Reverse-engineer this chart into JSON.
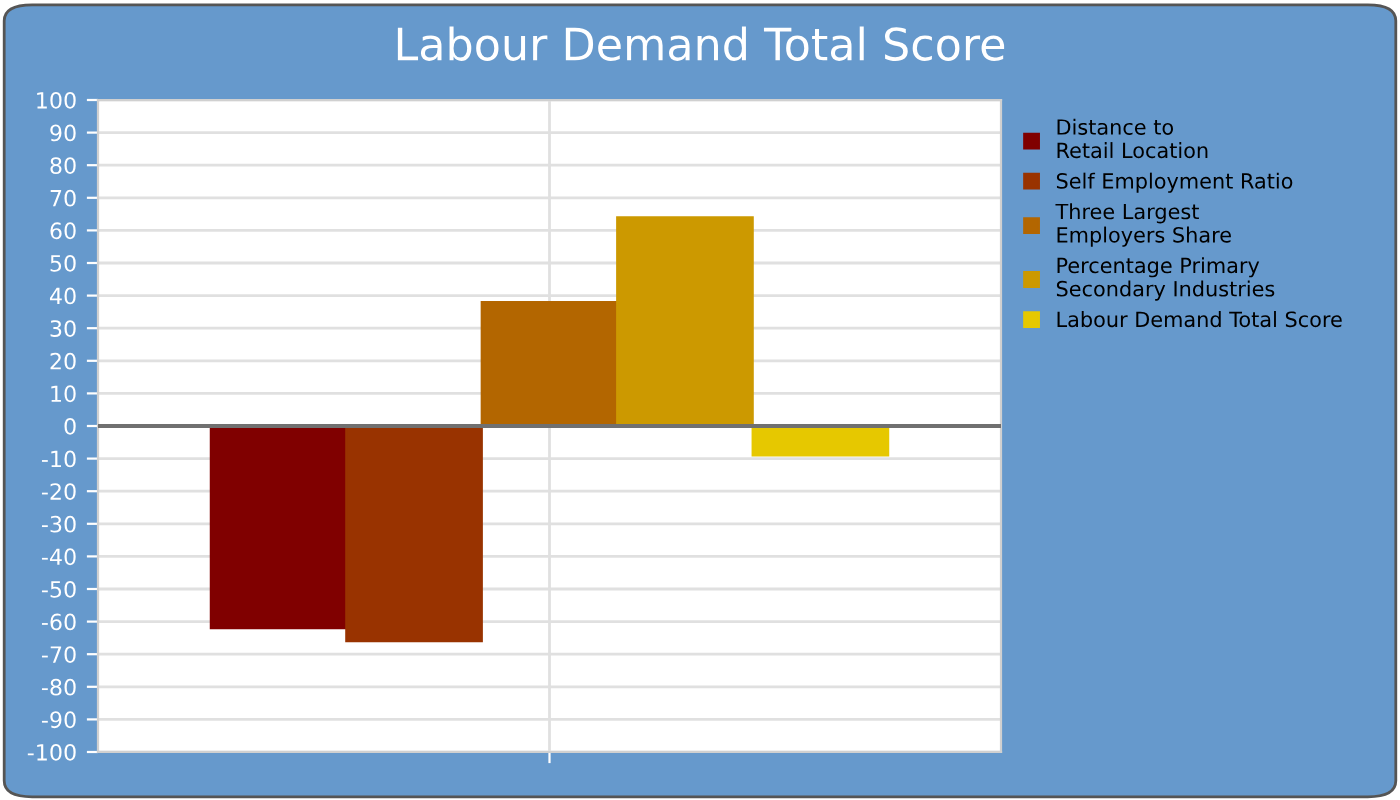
{
  "chart_data": {
    "type": "bar",
    "title": "Labour Demand Total Score",
    "categories": [
      null
    ],
    "series": [
      {
        "name": "Distance to\nRetail Location",
        "color": "#800000",
        "values": [
          -62
        ]
      },
      {
        "name": "Self Employment Ratio",
        "color": "#993300",
        "values": [
          -66
        ]
      },
      {
        "name": "Three Largest\nEmployers Share",
        "color": "#b36600",
        "values": [
          38
        ]
      },
      {
        "name": "Percentage Primary\nSecondary Industries",
        "color": "#cc9900",
        "values": [
          64
        ]
      },
      {
        "name": "Labour Demand Total Score",
        "color": "#e6c800",
        "values": [
          -9
        ]
      }
    ],
    "ylim": [
      -100,
      100
    ],
    "yticks": [
      -100,
      -90,
      -80,
      -70,
      -60,
      -50,
      -40,
      -30,
      -20,
      -10,
      0,
      10,
      20,
      30,
      40,
      50,
      60,
      70,
      80,
      90,
      100
    ],
    "grid": true,
    "legend": "right"
  }
}
